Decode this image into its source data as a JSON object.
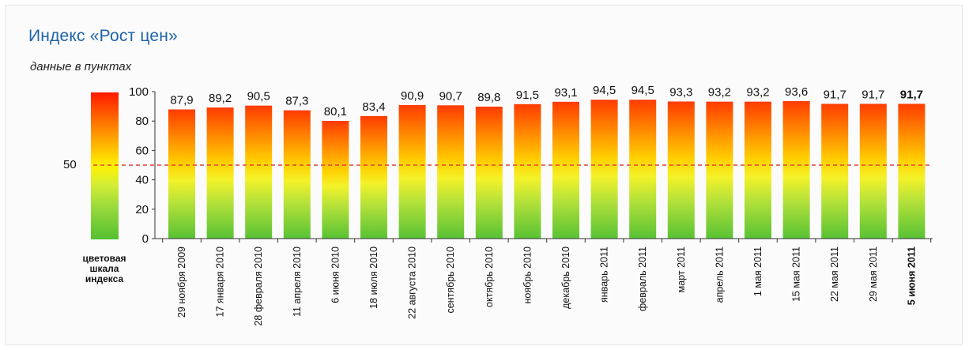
{
  "title": "Индекс «Рост цен»",
  "subtitle": "данные в пунктах",
  "scale": {
    "threshold_label": "50",
    "caption": [
      "цветовая",
      "шкала",
      "индекса"
    ]
  },
  "colors": {
    "title": "#1f63a8",
    "threshold_line": "#e0403a",
    "bar_top": "#ff3b00",
    "bar_mid": "#fff200",
    "bar_bottom": "#58c234"
  },
  "chart_data": {
    "type": "bar",
    "title": "Индекс «Рост цен»",
    "subtitle": "данные в пунктах",
    "categories": [
      "29 ноября 2009",
      "17 января 2010",
      "28 февраля 2010",
      "11 апреля 2010",
      "6 июня 2010",
      "18 июля 2010",
      "22 августа 2010",
      "сентябрь 2010",
      "октябрь 2010",
      "ноябрь 2010",
      "декабрь 2010",
      "январь 2011",
      "февраль 2011",
      "март 2011",
      "апрель 2011",
      "1 мая 2011",
      "15 мая 2011",
      "22 мая 2011",
      "29 мая 2011",
      "5 июня 2011"
    ],
    "values": [
      87.9,
      89.2,
      90.5,
      87.3,
      80.1,
      83.4,
      90.9,
      90.7,
      89.8,
      91.5,
      93.1,
      94.5,
      94.5,
      93.3,
      93.2,
      93.2,
      93.6,
      91.7,
      91.7,
      91.7
    ],
    "value_labels": [
      "87,9",
      "89,2",
      "90,5",
      "87,3",
      "80,1",
      "83,4",
      "90,9",
      "90,7",
      "89,8",
      "91,5",
      "93,1",
      "94,5",
      "94,5",
      "93,3",
      "93,2",
      "93,2",
      "93,6",
      "91,7",
      "91,7",
      "91,7"
    ],
    "highlighted_index": 19,
    "yticks": [
      "0",
      "20",
      "40",
      "60",
      "80",
      "100"
    ],
    "ylim": [
      0,
      100
    ],
    "reference_line": 50,
    "grid": false
  }
}
